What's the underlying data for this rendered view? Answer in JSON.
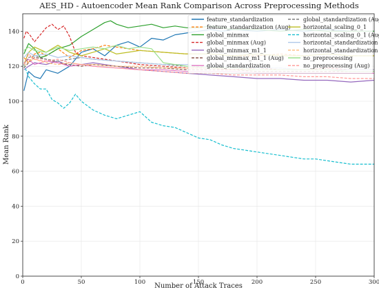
{
  "chart_data": {
    "type": "line",
    "title": "AES_HD - Autoencoder Mean Rank Comparison Across Preprocessing Methods",
    "xlabel": "Number of Attack Traces",
    "ylabel": "Mean Rank",
    "xlim": [
      0,
      300
    ],
    "ylim": [
      0,
      150
    ],
    "xticks": [
      0,
      50,
      100,
      150,
      200,
      250,
      300
    ],
    "yticks": [
      0,
      20,
      40,
      60,
      80,
      100,
      120,
      140
    ],
    "grid": true,
    "legend_placement": "top-right",
    "series": [
      {
        "name": "feature_standardization",
        "color": "#1f77b4",
        "style": "solid",
        "x": [
          1,
          5,
          10,
          15,
          20,
          30,
          40,
          50,
          60,
          70,
          80,
          90,
          100,
          110,
          120,
          130,
          140,
          150,
          160,
          170,
          180,
          200,
          220,
          240,
          260,
          280,
          300
        ],
        "y": [
          106,
          117,
          114,
          113,
          118,
          116,
          120,
          128,
          130,
          126,
          132,
          134,
          131,
          136,
          135,
          138,
          139,
          140,
          141,
          140,
          141,
          140,
          141,
          140,
          141,
          140,
          140
        ]
      },
      {
        "name": "feature_standardization (Aug)",
        "color": "#ff7f0e",
        "style": "dashed",
        "x": [
          1,
          5,
          10,
          15,
          20,
          30,
          40,
          50,
          60,
          70,
          80,
          90,
          100,
          120,
          140,
          160,
          180,
          200,
          220,
          240,
          260,
          280,
          300
        ],
        "y": [
          125,
          122,
          127,
          128,
          126,
          130,
          125,
          129,
          130,
          132,
          131,
          130,
          129,
          128,
          127,
          127,
          126,
          126,
          127,
          126,
          127,
          126,
          126
        ]
      },
      {
        "name": "global_minmax",
        "color": "#2ca02c",
        "style": "solid",
        "x": [
          1,
          5,
          10,
          15,
          20,
          30,
          40,
          50,
          60,
          70,
          75,
          80,
          90,
          100,
          110,
          120,
          130,
          140,
          150,
          160,
          180,
          200,
          220,
          240,
          260,
          280,
          300
        ],
        "y": [
          127,
          133,
          130,
          125,
          126,
          130,
          132,
          137,
          141,
          145,
          146,
          144,
          142,
          143,
          144,
          142,
          143,
          142,
          142,
          143,
          141,
          141,
          140,
          141,
          140,
          140,
          140
        ]
      },
      {
        "name": "global_minmax (Aug)",
        "color": "#d62728",
        "style": "dashed",
        "x": [
          1,
          3,
          6,
          10,
          15,
          20,
          25,
          30,
          35,
          40,
          45,
          50,
          60,
          70,
          80,
          90,
          100,
          120,
          140,
          160,
          180,
          200,
          220,
          240,
          260,
          280,
          300
        ],
        "y": [
          136,
          140,
          138,
          134,
          138,
          142,
          144,
          141,
          143,
          137,
          128,
          126,
          125,
          124,
          123,
          122,
          121,
          120,
          119,
          119,
          118,
          119,
          118,
          118,
          119,
          118,
          118
        ]
      },
      {
        "name": "global_minmax_m1_1",
        "color": "#9467bd",
        "style": "solid",
        "x": [
          1,
          5,
          10,
          20,
          30,
          40,
          50,
          60,
          70,
          80,
          90,
          100,
          120,
          140,
          160,
          180,
          200,
          220,
          240,
          260,
          280,
          300
        ],
        "y": [
          118,
          120,
          122,
          121,
          123,
          120,
          121,
          122,
          121,
          120,
          119,
          118,
          117,
          116,
          115,
          114,
          113,
          113,
          112,
          112,
          111,
          112
        ]
      },
      {
        "name": "global_minmax_m1_1 (Aug)",
        "color": "#8c564b",
        "style": "dashed",
        "x": [
          1,
          5,
          10,
          20,
          30,
          40,
          50,
          60,
          80,
          100,
          120,
          140,
          160,
          180,
          200,
          220,
          240,
          260,
          280,
          300
        ],
        "y": [
          119,
          122,
          125,
          124,
          122,
          121,
          120,
          121,
          120,
          119,
          119,
          118,
          118,
          118,
          117,
          117,
          117,
          117,
          117,
          117
        ]
      },
      {
        "name": "global_standardization",
        "color": "#e377c2",
        "style": "solid",
        "x": [
          1,
          5,
          10,
          20,
          30,
          40,
          50,
          60,
          80,
          100,
          120,
          140,
          160,
          180,
          200,
          220,
          240,
          260,
          280,
          300
        ],
        "y": [
          122,
          124,
          121,
          123,
          122,
          120,
          121,
          120,
          119,
          118,
          118,
          117,
          117,
          117,
          116,
          116,
          116,
          116,
          116,
          116
        ]
      },
      {
        "name": "global_standardization (Aug)",
        "color": "#7f7f7f",
        "style": "dashed",
        "x": [
          1,
          5,
          10,
          20,
          30,
          40,
          50,
          60,
          80,
          100,
          120,
          140,
          160,
          180,
          200,
          220,
          240,
          260,
          280,
          300
        ],
        "y": [
          121,
          125,
          126,
          124,
          123,
          124,
          125,
          124,
          123,
          122,
          121,
          120,
          120,
          119,
          119,
          119,
          118,
          118,
          118,
          118
        ]
      },
      {
        "name": "horizontal_scaling_0_1",
        "color": "#bcbd22",
        "style": "solid",
        "x": [
          1,
          5,
          10,
          20,
          30,
          40,
          50,
          60,
          70,
          80,
          90,
          100,
          120,
          140,
          160,
          180,
          200,
          220,
          240,
          260,
          280,
          300
        ],
        "y": [
          121,
          128,
          131,
          128,
          132,
          128,
          126,
          128,
          130,
          127,
          128,
          129,
          128,
          127,
          127,
          126,
          127,
          126,
          126,
          127,
          126,
          126
        ]
      },
      {
        "name": "horizontal_scaling_0_1 (Aug)",
        "color": "#17becf",
        "style": "dashed",
        "x": [
          1,
          5,
          10,
          15,
          20,
          25,
          30,
          35,
          40,
          45,
          50,
          60,
          70,
          80,
          90,
          100,
          110,
          120,
          130,
          140,
          150,
          160,
          170,
          180,
          190,
          200,
          210,
          220,
          230,
          240,
          250,
          260,
          270,
          280,
          290,
          300
        ],
        "y": [
          121,
          114,
          110,
          107,
          107,
          101,
          99,
          96,
          99,
          104,
          100,
          95,
          92,
          90,
          92,
          94,
          88,
          86,
          85,
          82,
          79,
          78,
          75,
          73,
          72,
          71,
          70,
          69,
          68,
          67,
          67,
          66,
          65,
          64,
          64,
          64
        ]
      },
      {
        "name": "horizontal_standardization",
        "color": "#aec7e8",
        "style": "solid",
        "x": [
          1,
          5,
          10,
          20,
          30,
          40,
          50,
          60,
          80,
          100,
          120,
          140,
          160,
          180,
          200,
          220,
          240,
          260,
          280,
          300
        ],
        "y": [
          125,
          128,
          126,
          127,
          125,
          126,
          125,
          124,
          123,
          122,
          121,
          121,
          120,
          120,
          119,
          119,
          118,
          118,
          118,
          118
        ]
      },
      {
        "name": "horizontal_standardization (Aug)",
        "color": "#ffbb78",
        "style": "dashed",
        "x": [
          1,
          5,
          10,
          20,
          30,
          40,
          50,
          60,
          80,
          100,
          120,
          140,
          160,
          180,
          200,
          220,
          240,
          260,
          280,
          300
        ],
        "y": [
          120,
          123,
          124,
          122,
          121,
          122,
          121,
          121,
          120,
          120,
          119,
          119,
          119,
          118,
          118,
          118,
          118,
          118,
          117,
          117
        ]
      },
      {
        "name": "no_preprocessing",
        "color": "#98df8a",
        "style": "solid",
        "x": [
          1,
          5,
          10,
          20,
          30,
          40,
          50,
          60,
          70,
          80,
          90,
          100,
          110,
          120,
          140,
          160,
          180,
          200,
          220,
          240,
          260,
          280,
          300
        ],
        "y": [
          129,
          131,
          129,
          128,
          131,
          129,
          130,
          131,
          130,
          132,
          130,
          131,
          130,
          122,
          120,
          119,
          119,
          118,
          118,
          118,
          118,
          117,
          117
        ]
      },
      {
        "name": "no_preprocessing (Aug)",
        "color": "#ff9896",
        "style": "dashed",
        "x": [
          1,
          5,
          10,
          20,
          30,
          40,
          50,
          60,
          80,
          100,
          120,
          140,
          160,
          180,
          200,
          220,
          240,
          260,
          280,
          300
        ],
        "y": [
          121,
          127,
          124,
          123,
          124,
          122,
          121,
          120,
          119,
          118,
          117,
          116,
          116,
          115,
          115,
          115,
          114,
          114,
          113,
          113
        ]
      }
    ]
  }
}
